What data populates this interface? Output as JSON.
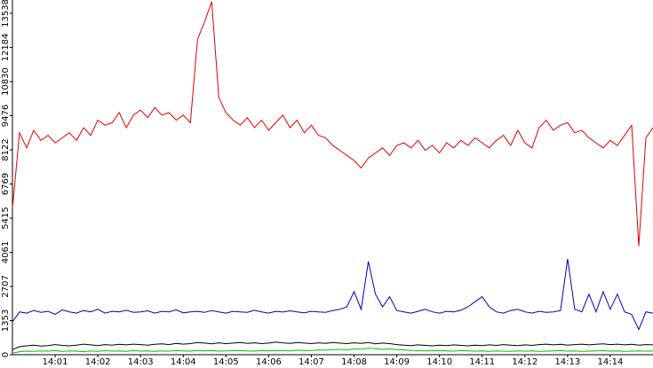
{
  "chart_data": {
    "type": "line",
    "x": [
      0,
      1,
      2,
      3,
      4,
      5,
      6,
      7,
      8,
      9,
      10,
      11,
      12,
      13,
      14,
      15,
      16,
      17,
      18,
      19,
      20,
      21,
      22,
      23,
      24,
      25,
      26,
      27,
      28,
      29,
      30,
      31,
      32,
      33,
      34,
      35,
      36,
      37,
      38,
      39,
      40,
      41,
      42,
      43,
      44,
      45,
      46,
      47,
      48,
      49,
      50,
      51,
      52,
      53,
      54,
      55,
      56,
      57,
      58,
      59,
      60,
      61,
      62,
      63,
      64,
      65,
      66,
      67,
      68,
      69,
      70,
      71,
      72,
      73,
      74,
      75,
      76,
      77,
      78,
      79,
      80,
      81,
      82,
      83,
      84,
      85,
      86,
      87,
      88,
      89,
      90
    ],
    "xlim": [
      0,
      90
    ],
    "xticks": [
      {
        "value": 6,
        "label": "14:01"
      },
      {
        "value": 12,
        "label": "14:02"
      },
      {
        "value": 18,
        "label": "14:03"
      },
      {
        "value": 24,
        "label": "14:04"
      },
      {
        "value": 30,
        "label": "14:05"
      },
      {
        "value": 36,
        "label": "14:06"
      },
      {
        "value": 42,
        "label": "14:07"
      },
      {
        "value": 48,
        "label": "14:08"
      },
      {
        "value": 54,
        "label": "14:09"
      },
      {
        "value": 60,
        "label": "14:10"
      },
      {
        "value": 66,
        "label": "14:11"
      },
      {
        "value": 72,
        "label": "14:12"
      },
      {
        "value": 78,
        "label": "14:13"
      },
      {
        "value": 84,
        "label": "14:14"
      }
    ],
    "ylim": [
      0,
      14065
    ],
    "yticks": [
      0,
      1353,
      2707,
      4061,
      5415,
      6769,
      8122,
      9476,
      10830,
      12184,
      13538
    ],
    "series": [
      {
        "color": "#e00000",
        "values": [
          5800,
          8800,
          8200,
          8900,
          8500,
          8700,
          8400,
          8600,
          8800,
          8500,
          9000,
          8700,
          9300,
          9100,
          9200,
          9600,
          9000,
          9500,
          9700,
          9400,
          9800,
          9500,
          9600,
          9300,
          9500,
          9200,
          12500,
          13200,
          14000,
          10200,
          9600,
          9300,
          9100,
          9400,
          9000,
          9300,
          8900,
          9200,
          9500,
          9000,
          9300,
          8800,
          9100,
          8700,
          8600,
          8300,
          8100,
          7900,
          7700,
          7400,
          7800,
          8000,
          8200,
          7900,
          8300,
          8400,
          8200,
          8500,
          8100,
          8300,
          8000,
          8400,
          8200,
          8500,
          8300,
          8600,
          8400,
          8200,
          8500,
          8700,
          8300,
          8900,
          8400,
          8200,
          9000,
          9300,
          8900,
          9100,
          9200,
          8800,
          8900,
          8600,
          8400,
          8200,
          8500,
          8300,
          8700,
          9100,
          4300,
          8600,
          9000
        ]
      },
      {
        "color": "#0000c0",
        "values": [
          1300,
          1700,
          1650,
          1750,
          1680,
          1720,
          1600,
          1780,
          1700,
          1650,
          1750,
          1700,
          1800,
          1650,
          1720,
          1700,
          1760,
          1680,
          1700,
          1740,
          1650,
          1720,
          1700,
          1780,
          1660,
          1700,
          1720,
          1680,
          1750,
          1700,
          1650,
          1720,
          1700,
          1680,
          1760,
          1700,
          1650,
          1720,
          1690,
          1740,
          1700,
          1660,
          1720,
          1700,
          1680,
          1750,
          1800,
          1900,
          2500,
          1800,
          3700,
          2400,
          1900,
          2300,
          1750,
          1700,
          1650,
          1720,
          1800,
          1700,
          1650,
          1720,
          1700,
          1760,
          1900,
          2100,
          2300,
          1900,
          1700,
          1650,
          1750,
          1800,
          1700,
          1650,
          1720,
          1680,
          1700,
          1750,
          3800,
          1800,
          1700,
          2400,
          1700,
          2500,
          1800,
          2400,
          1700,
          1600,
          1000,
          1700,
          1650
        ]
      },
      {
        "color": "#000000",
        "values": [
          200,
          320,
          350,
          380,
          340,
          360,
          400,
          370,
          350,
          380,
          420,
          390,
          360,
          400,
          380,
          410,
          390,
          420,
          400,
          380,
          410,
          430,
          400,
          450,
          420,
          440,
          480,
          460,
          430,
          470,
          440,
          460,
          480,
          450,
          470,
          440,
          460,
          500,
          470,
          450,
          480,
          460,
          440,
          470,
          450,
          480,
          460,
          440,
          470,
          450,
          480,
          430,
          460,
          440,
          400,
          380,
          360,
          390,
          370,
          350,
          380,
          360,
          390,
          370,
          350,
          380,
          360,
          390,
          370,
          400,
          380,
          360,
          390,
          370,
          400,
          420,
          390,
          410,
          380,
          400,
          420,
          390,
          410,
          430,
          400,
          420,
          390,
          410,
          380,
          400,
          390
        ]
      },
      {
        "color": "#00c000",
        "values": [
          60,
          120,
          140,
          130,
          150,
          140,
          160,
          130,
          150,
          140,
          120,
          150,
          130,
          160,
          140,
          150,
          130,
          160,
          140,
          150,
          130,
          150,
          140,
          160,
          150,
          140,
          170,
          150,
          160,
          140,
          150,
          170,
          160,
          150,
          140,
          160,
          150,
          170,
          160,
          150,
          180,
          170,
          160,
          190,
          180,
          200,
          210,
          190,
          230,
          220,
          260,
          240,
          210,
          230,
          200,
          190,
          170,
          160,
          150,
          170,
          160,
          150,
          140,
          160,
          150,
          140,
          150,
          130,
          150,
          140,
          130,
          150,
          140,
          150,
          130,
          140,
          150,
          160,
          140,
          150,
          130,
          140,
          150,
          160,
          140,
          150,
          130,
          140,
          150,
          140,
          150
        ]
      }
    ]
  }
}
